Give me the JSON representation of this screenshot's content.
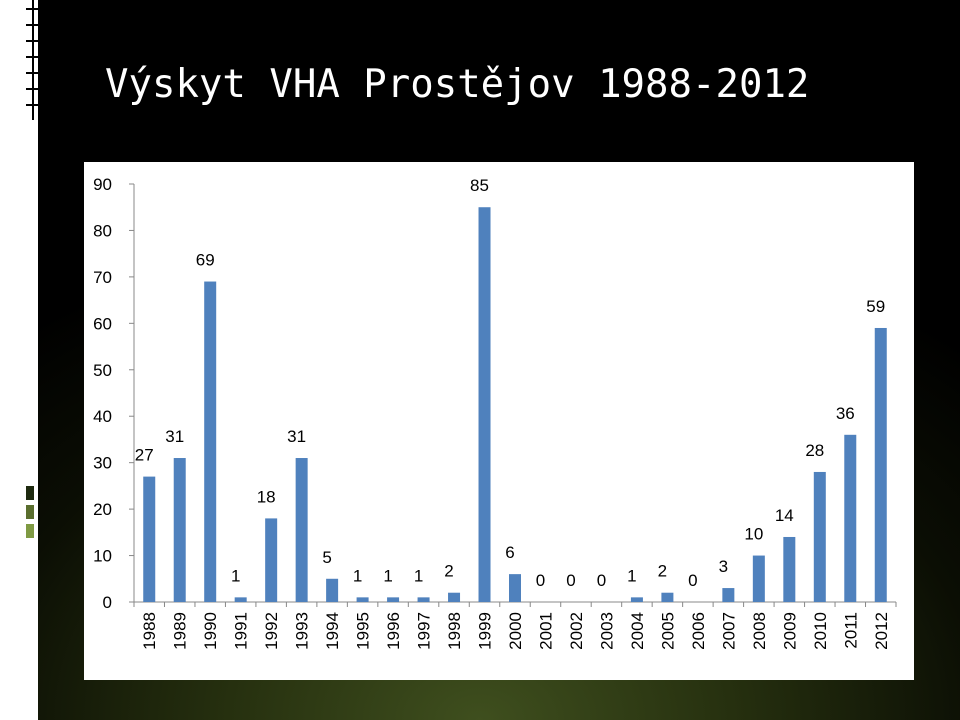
{
  "slide": {
    "title": "Výskyt VHA Prostějov 1988-2012",
    "background_color": "#000000",
    "accent_color": "#3f4f1e",
    "decor_colors": [
      "#1e2a0f",
      "#5a6e2e",
      "#7f9a43"
    ]
  },
  "chart_data": {
    "type": "bar",
    "title": "",
    "xlabel": "",
    "ylabel": "",
    "categories": [
      "1988",
      "1989",
      "1990",
      "1991",
      "1992",
      "1993",
      "1994",
      "1995",
      "1996",
      "1997",
      "1998",
      "1999",
      "2000",
      "2001",
      "2002",
      "2003",
      "2004",
      "2005",
      "2006",
      "2007",
      "2008",
      "2009",
      "2010",
      "2011",
      "2012"
    ],
    "values": [
      27,
      31,
      69,
      1,
      18,
      31,
      5,
      1,
      1,
      1,
      2,
      85,
      6,
      0,
      0,
      0,
      1,
      2,
      0,
      3,
      10,
      14,
      28,
      36,
      59
    ],
    "data_labels": [
      "27",
      "31",
      "69",
      "1",
      "18",
      "31",
      "5",
      "1",
      "1",
      "1",
      "2",
      "85",
      "6",
      "0",
      "0",
      "0",
      "1",
      "2",
      "0",
      "3",
      "10",
      "14",
      "28",
      "36",
      "59"
    ],
    "ylim": [
      0,
      90
    ],
    "yticks": [
      0,
      10,
      20,
      30,
      40,
      50,
      60,
      70,
      80,
      90
    ],
    "ytick_labels": [
      "0",
      "10",
      "20",
      "30",
      "40",
      "50",
      "60",
      "70",
      "80",
      "90"
    ],
    "bar_color": "#4f81bd",
    "grid": false,
    "legend": "none"
  }
}
